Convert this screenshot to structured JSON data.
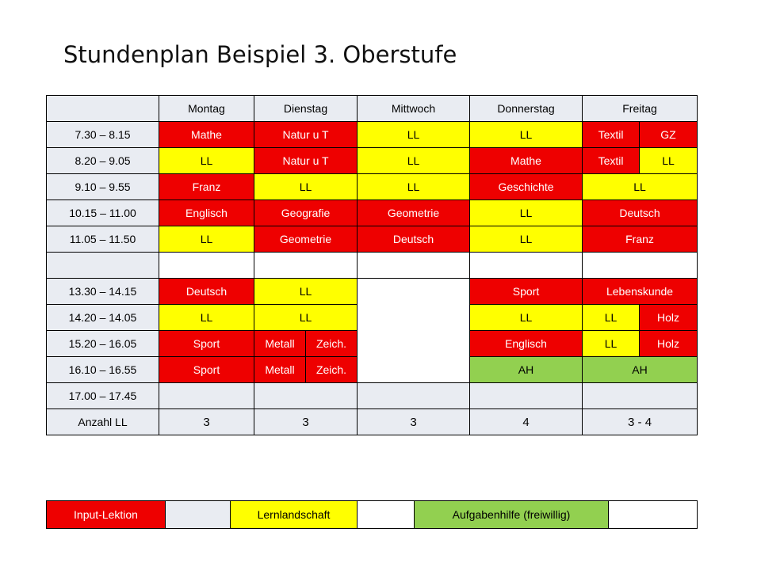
{
  "title": "Stundenplan Beispiel 3. Oberstufe",
  "days": [
    "Montag",
    "Dienstag",
    "Mittwoch",
    "Donnerstag",
    "Freitag"
  ],
  "rows": [
    {
      "time": "7.30 – 8.15",
      "mon": "Mathe",
      "tue": "Natur u T",
      "wed": "LL",
      "thu": "LL",
      "fri_a": "Textil",
      "fri_b": "GZ"
    },
    {
      "time": "8.20 – 9.05",
      "mon": "LL",
      "tue": "Natur u T",
      "wed": "LL",
      "thu": "Mathe",
      "fri_a": "Textil",
      "fri_b": "LL"
    },
    {
      "time": "9.10 – 9.55",
      "mon": "Franz",
      "tue": "LL",
      "wed": "LL",
      "thu": "Geschichte",
      "fri": "LL"
    },
    {
      "time": "10.15 – 11.00",
      "mon": "Englisch",
      "tue": "Geografie",
      "wed": "Geometrie",
      "thu": "LL",
      "fri": "Deutsch"
    },
    {
      "time": "11.05 – 11.50",
      "mon": "LL",
      "tue": "Geometrie",
      "wed": "Deutsch",
      "thu": "LL",
      "fri": "Franz"
    },
    {
      "time": "13.30 – 14.15",
      "mon": "Deutsch",
      "tue": "LL",
      "thu": "Sport",
      "fri": "Lebenskunde"
    },
    {
      "time": "14.20 – 14.05",
      "mon": "LL",
      "tue": "LL",
      "thu": "LL",
      "fri_a": "LL",
      "fri_b": "Holz"
    },
    {
      "time": "15.20 – 16.05",
      "mon": "Sport",
      "tue_a": "Metall",
      "tue_b": "Zeich.",
      "thu": "Englisch",
      "fri_a": "LL",
      "fri_b": "Holz"
    },
    {
      "time": "16.10 – 16.55",
      "mon": "Sport",
      "tue_a": "Metall",
      "tue_b": "Zeich.",
      "thu": "AH",
      "fri": "AH"
    },
    {
      "time": "17.00 – 17.45"
    }
  ],
  "totals": {
    "label": "Anzahl LL",
    "mon": "3",
    "tue": "3",
    "wed": "3",
    "thu": "4",
    "fri": "3 - 4"
  },
  "legend": {
    "input": "Input-Lektion",
    "lernlandschaft": "Lernlandschaft",
    "aufgabenhilfe": "Aufgabenhilfe (freiwillig)"
  },
  "colors": {
    "input": "#ee0000",
    "lernlandschaft": "#ffff00",
    "aufgabenhilfe": "#92d050",
    "header": "#e9ecf2"
  }
}
